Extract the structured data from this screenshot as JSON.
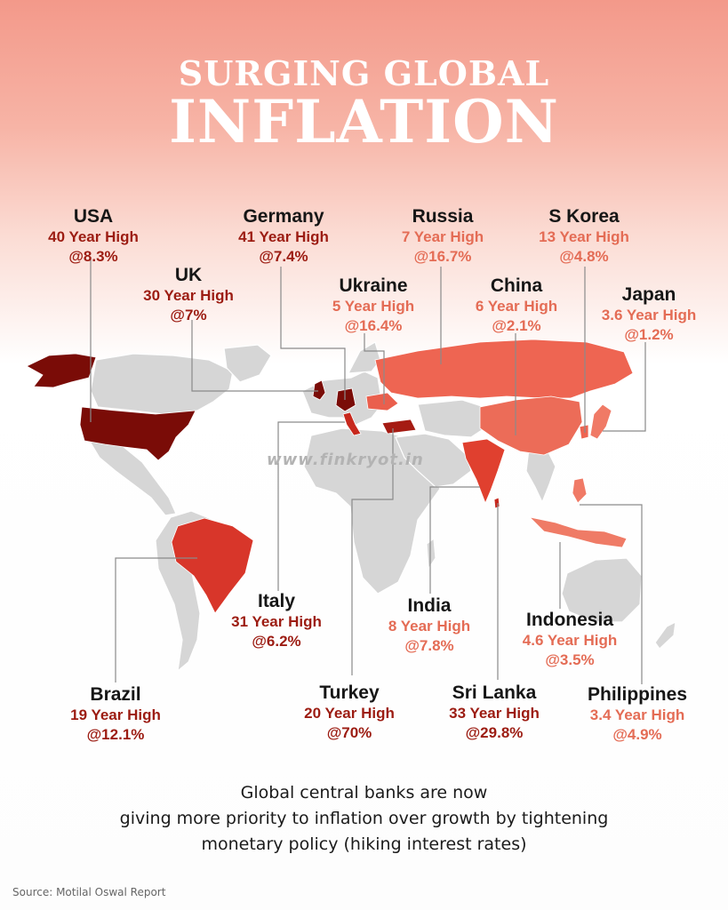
{
  "title": {
    "line1": "SURGING GLOBAL",
    "line2": "INFLATION"
  },
  "countries": {
    "usa": {
      "name": "USA",
      "high": "40 Year High",
      "rate": "@8.3%"
    },
    "germany": {
      "name": "Germany",
      "high": "41 Year High",
      "rate": "@7.4%"
    },
    "russia": {
      "name": "Russia",
      "high": "7 Year High",
      "rate": "@16.7%"
    },
    "s_korea": {
      "name": "S Korea",
      "high": "13 Year High",
      "rate": "@4.8%"
    },
    "uk": {
      "name": "UK",
      "high": "30 Year High",
      "rate": "@7%"
    },
    "ukraine": {
      "name": "Ukraine",
      "high": "5 Year High",
      "rate": "@16.4%"
    },
    "china": {
      "name": "China",
      "high": "6 Year High",
      "rate": "@2.1%"
    },
    "japan": {
      "name": "Japan",
      "high": "3.6 Year High",
      "rate": "@1.2%"
    },
    "italy": {
      "name": "Italy",
      "high": "31 Year High",
      "rate": "@6.2%"
    },
    "india": {
      "name": "India",
      "high": "8 Year High",
      "rate": "@7.8%"
    },
    "indonesia": {
      "name": "Indonesia",
      "high": "4.6 Year High",
      "rate": "@3.5%"
    },
    "brazil": {
      "name": "Brazil",
      "high": "19 Year High",
      "rate": "@12.1%"
    },
    "turkey": {
      "name": "Turkey",
      "high": "20 Year High",
      "rate": "@70%"
    },
    "sri_lanka": {
      "name": "Sri Lanka",
      "high": "33 Year High",
      "rate": "@29.8%"
    },
    "philippines": {
      "name": "Philippines",
      "high": "3.4 Year High",
      "rate": "@4.9%"
    }
  },
  "colors": {
    "highest_tier": "#7a0c07",
    "high_tier": "#c7281d",
    "mid_tier": "#ee6552",
    "light_tier": "#f07a66",
    "other_land": "#d6d6d6",
    "dark_label": "#9c1c12",
    "light_label": "#e46c55"
  },
  "watermark": "www.finkryot.in",
  "footnote": [
    "Global central banks are now",
    "giving more priority to inflation over growth by tightening",
    "monetary policy (hiking interest rates)"
  ],
  "source": "Source: Motilal Oswal Report"
}
